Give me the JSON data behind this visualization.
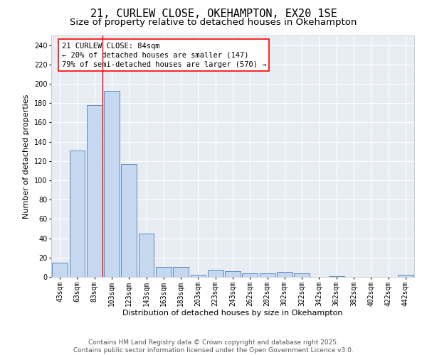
{
  "title_line1": "21, CURLEW CLOSE, OKEHAMPTON, EX20 1SE",
  "title_line2": "Size of property relative to detached houses in Okehampton",
  "xlabel": "Distribution of detached houses by size in Okehampton",
  "ylabel": "Number of detached properties",
  "bar_color": "#c5d8f0",
  "bar_edge_color": "#5a8abf",
  "bg_color": "#e8edf4",
  "grid_color": "#ffffff",
  "categories": [
    "43sqm",
    "63sqm",
    "83sqm",
    "103sqm",
    "123sqm",
    "143sqm",
    "163sqm",
    "183sqm",
    "203sqm",
    "223sqm",
    "243sqm",
    "262sqm",
    "282sqm",
    "302sqm",
    "322sqm",
    "342sqm",
    "362sqm",
    "382sqm",
    "402sqm",
    "422sqm",
    "442sqm"
  ],
  "values": [
    15,
    131,
    178,
    193,
    117,
    45,
    10,
    10,
    2,
    7,
    6,
    4,
    4,
    5,
    4,
    0,
    1,
    0,
    0,
    0,
    2
  ],
  "ylim": [
    0,
    250
  ],
  "yticks": [
    0,
    20,
    40,
    60,
    80,
    100,
    120,
    140,
    160,
    180,
    200,
    220,
    240
  ],
  "red_line_x": 2.45,
  "annotation_text": "21 CURLEW CLOSE: 84sqm\n← 20% of detached houses are smaller (147)\n79% of semi-detached houses are larger (570) →",
  "footer_line1": "Contains HM Land Registry data © Crown copyright and database right 2025.",
  "footer_line2": "Contains public sector information licensed under the Open Government Licence v3.0.",
  "title_fontsize": 11,
  "subtitle_fontsize": 9.5,
  "axis_label_fontsize": 8,
  "tick_fontsize": 7,
  "annotation_fontsize": 7.5,
  "footer_fontsize": 6.5
}
